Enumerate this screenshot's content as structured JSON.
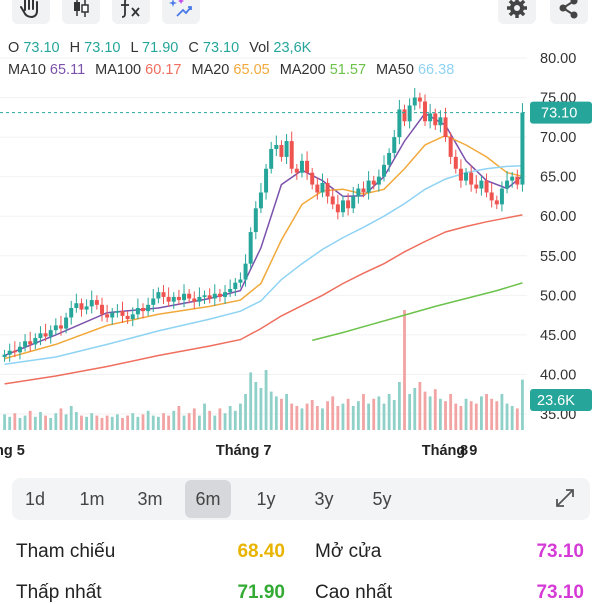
{
  "toolbar": {
    "icons": [
      "hand-icon",
      "candlestick-icon",
      "fx-indicator-icon",
      "magic-wand-icon",
      "gear-icon",
      "share-icon"
    ]
  },
  "ohlc": {
    "o_label": "O",
    "o_value": "73.10",
    "h_label": "H",
    "h_value": "73.10",
    "l_label": "L",
    "l_value": "71.90",
    "c_label": "C",
    "c_value": "73.10",
    "vol_label": "Vol",
    "vol_value": "23,6K",
    "color": "#26a69a"
  },
  "ma": [
    {
      "label": "MA10",
      "value": "65.11",
      "color": "#7b52ab"
    },
    {
      "label": "MA100",
      "value": "60.17",
      "color": "#ef6e5e"
    },
    {
      "label": "MA20",
      "value": "65.05",
      "color": "#f2a93b"
    },
    {
      "label": "MA200",
      "value": "51.57",
      "color": "#6cc24a"
    },
    {
      "label": "MA50",
      "value": "66.38",
      "color": "#8fd3f4"
    }
  ],
  "chart_data": {
    "type": "candlestick",
    "y_ticks": [
      "80.00",
      "75.00",
      "70.00",
      "65.00",
      "60.00",
      "55.00",
      "50.00",
      "45.00",
      "40.00",
      "35.00"
    ],
    "ylim": [
      35,
      80
    ],
    "x_labels": [
      {
        "label": "ng 5",
        "month_index": 0
      },
      {
        "label": "Tháng 7",
        "month_index": 2
      },
      {
        "label": "Tháng 9",
        "month_index": 4
      },
      {
        "label": "8",
        "month_index": 5
      }
    ],
    "last_price": {
      "value": 73.1,
      "label": "73.10",
      "color": "#26a69a"
    },
    "last_volume": {
      "label": "23.6K",
      "color": "#26a69a"
    },
    "up_color": "#26a69a",
    "down_color": "#ef5350",
    "closes": [
      42.5,
      43.0,
      42.8,
      43.5,
      44.2,
      43.8,
      44.6,
      45.2,
      44.8,
      45.6,
      46.2,
      45.8,
      47.2,
      48.4,
      49.0,
      48.2,
      48.6,
      49.4,
      48.8,
      47.6,
      47.2,
      47.8,
      48.0,
      47.4,
      47.0,
      47.6,
      48.4,
      48.0,
      48.8,
      49.6,
      50.4,
      49.8,
      49.2,
      49.8,
      49.4,
      50.2,
      49.6,
      49.2,
      49.8,
      50.0,
      49.6,
      50.2,
      49.8,
      50.4,
      50.8,
      51.6,
      52.0,
      54.0,
      58.0,
      61.0,
      63.0,
      66.0,
      68.5,
      69.0,
      67.5,
      69.5,
      66.0,
      65.5,
      67.0,
      65.5,
      64.0,
      63.0,
      64.2,
      62.5,
      61.5,
      60.5,
      62.0,
      61.0,
      62.5,
      63.5,
      63.0,
      64.5,
      64.0,
      65.0,
      66.5,
      68.0,
      70.0,
      73.5,
      72.0,
      74.0,
      75.0,
      74.5,
      72.0,
      73.0,
      71.5,
      72.5,
      70.0,
      67.5,
      66.0,
      64.5,
      65.5,
      64.0,
      63.5,
      64.5,
      63.0,
      62.0,
      61.5,
      63.5,
      64.5,
      65.0,
      64.0,
      73.1
    ],
    "volumes": [
      0.13,
      0.11,
      0.14,
      0.1,
      0.12,
      0.16,
      0.11,
      0.15,
      0.12,
      0.1,
      0.14,
      0.18,
      0.13,
      0.2,
      0.15,
      0.12,
      0.11,
      0.14,
      0.12,
      0.1,
      0.12,
      0.11,
      0.13,
      0.1,
      0.12,
      0.14,
      0.11,
      0.13,
      0.16,
      0.12,
      0.11,
      0.14,
      0.12,
      0.16,
      0.2,
      0.12,
      0.14,
      0.18,
      0.12,
      0.22,
      0.16,
      0.12,
      0.18,
      0.14,
      0.2,
      0.16,
      0.22,
      0.3,
      0.48,
      0.4,
      0.35,
      0.5,
      0.32,
      0.28,
      0.26,
      0.3,
      0.22,
      0.2,
      0.18,
      0.22,
      0.25,
      0.2,
      0.18,
      0.24,
      0.28,
      0.2,
      0.22,
      0.26,
      0.2,
      0.24,
      0.3,
      0.22,
      0.26,
      0.28,
      0.22,
      0.3,
      0.25,
      0.4,
      1.0,
      0.3,
      0.35,
      0.4,
      0.32,
      0.28,
      0.34,
      0.26,
      0.24,
      0.3,
      0.22,
      0.2,
      0.26,
      0.24,
      0.22,
      0.28,
      0.3,
      0.26,
      0.24,
      0.3,
      0.22,
      0.2,
      0.18,
      0.42
    ],
    "ma_series": [
      {
        "label": "MA10",
        "color": "#7b52ab",
        "points": [
          [
            0,
            42.4
          ],
          [
            10,
            45.0
          ],
          [
            20,
            47.8
          ],
          [
            30,
            48.4
          ],
          [
            40,
            49.6
          ],
          [
            46,
            50.6
          ],
          [
            50,
            56.0
          ],
          [
            54,
            64.0
          ],
          [
            58,
            65.8
          ],
          [
            62,
            64.5
          ],
          [
            66,
            62.5
          ],
          [
            70,
            62.6
          ],
          [
            74,
            65.0
          ],
          [
            78,
            69.5
          ],
          [
            82,
            73.0
          ],
          [
            86,
            71.5
          ],
          [
            90,
            67.0
          ],
          [
            94,
            64.5
          ],
          [
            98,
            63.5
          ],
          [
            101,
            65.1
          ]
        ]
      },
      {
        "label": "MA20",
        "color": "#f2a93b",
        "points": [
          [
            0,
            42.0
          ],
          [
            10,
            43.8
          ],
          [
            20,
            46.2
          ],
          [
            30,
            47.6
          ],
          [
            40,
            48.6
          ],
          [
            46,
            49.4
          ],
          [
            50,
            51.5
          ],
          [
            54,
            57.0
          ],
          [
            58,
            61.5
          ],
          [
            62,
            63.2
          ],
          [
            66,
            63.4
          ],
          [
            70,
            62.8
          ],
          [
            74,
            63.4
          ],
          [
            78,
            66.0
          ],
          [
            82,
            69.0
          ],
          [
            86,
            70.2
          ],
          [
            90,
            69.0
          ],
          [
            94,
            67.5
          ],
          [
            98,
            65.5
          ],
          [
            101,
            65.05
          ]
        ]
      },
      {
        "label": "MA50",
        "color": "#8fd3f4",
        "points": [
          [
            0,
            41.3
          ],
          [
            10,
            42.2
          ],
          [
            20,
            43.8
          ],
          [
            30,
            45.5
          ],
          [
            40,
            47.0
          ],
          [
            46,
            48.0
          ],
          [
            50,
            49.3
          ],
          [
            54,
            52.0
          ],
          [
            58,
            54.0
          ],
          [
            62,
            55.8
          ],
          [
            66,
            57.3
          ],
          [
            70,
            58.6
          ],
          [
            74,
            60.0
          ],
          [
            78,
            61.6
          ],
          [
            82,
            63.4
          ],
          [
            86,
            64.7
          ],
          [
            90,
            65.5
          ],
          [
            94,
            66.0
          ],
          [
            98,
            66.3
          ],
          [
            101,
            66.38
          ]
        ]
      },
      {
        "label": "MA100",
        "color": "#ef6e5e",
        "points": [
          [
            0,
            38.8
          ],
          [
            10,
            39.8
          ],
          [
            20,
            41.0
          ],
          [
            30,
            42.4
          ],
          [
            40,
            43.6
          ],
          [
            46,
            44.4
          ],
          [
            50,
            45.8
          ],
          [
            54,
            47.4
          ],
          [
            58,
            48.7
          ],
          [
            62,
            50.0
          ],
          [
            66,
            51.5
          ],
          [
            70,
            52.8
          ],
          [
            74,
            54.0
          ],
          [
            78,
            55.5
          ],
          [
            82,
            56.8
          ],
          [
            86,
            58.0
          ],
          [
            90,
            58.7
          ],
          [
            94,
            59.3
          ],
          [
            98,
            59.8
          ],
          [
            101,
            60.17
          ]
        ]
      },
      {
        "label": "MA200",
        "color": "#6cc24a",
        "points": [
          [
            60,
            44.3
          ],
          [
            66,
            45.3
          ],
          [
            72,
            46.4
          ],
          [
            78,
            47.5
          ],
          [
            84,
            48.6
          ],
          [
            90,
            49.6
          ],
          [
            96,
            50.6
          ],
          [
            101,
            51.57
          ]
        ]
      }
    ]
  },
  "periods": [
    {
      "label": "1d",
      "active": false
    },
    {
      "label": "1m",
      "active": false
    },
    {
      "label": "3m",
      "active": false
    },
    {
      "label": "6m",
      "active": true
    },
    {
      "label": "1y",
      "active": false
    },
    {
      "label": "3y",
      "active": false
    },
    {
      "label": "5y",
      "active": false
    }
  ],
  "stats": {
    "ref_label": "Tham chiếu",
    "ref_value": "68.40",
    "ref_color": "#e8b400",
    "open_label": "Mở cửa",
    "open_value": "73.10",
    "open_color": "#d63ad6",
    "low_label": "Thấp nhất",
    "low_value": "71.90",
    "low_color": "#33aa33",
    "high_label": "Cao nhất",
    "high_value": "73.10",
    "high_color": "#d63ad6"
  }
}
